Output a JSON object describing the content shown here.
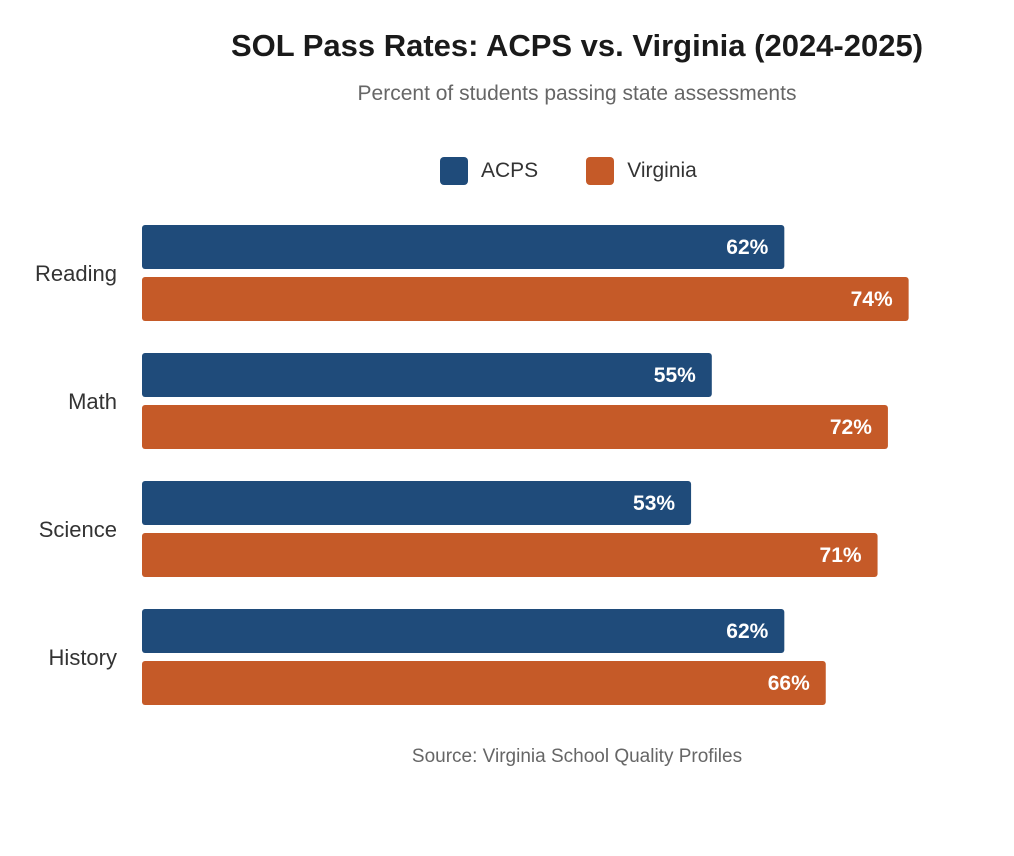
{
  "chart_data": {
    "type": "bar",
    "orientation": "horizontal",
    "title": "SOL Pass Rates: ACPS vs. Virginia (2024-2025)",
    "subtitle": "Percent of students passing state assessments",
    "categories": [
      "Reading",
      "Math",
      "Science",
      "History"
    ],
    "series": [
      {
        "name": "ACPS",
        "color": "#1f4b7a",
        "values": [
          62,
          55,
          53,
          62
        ]
      },
      {
        "name": "Virginia",
        "color": "#c55a28",
        "values": [
          74,
          72,
          71,
          66
        ]
      }
    ],
    "value_suffix": "%",
    "xlim": [
      0,
      100
    ],
    "grid": false,
    "legend": "top-center",
    "source": "Source: Virginia School Quality Profiles"
  }
}
